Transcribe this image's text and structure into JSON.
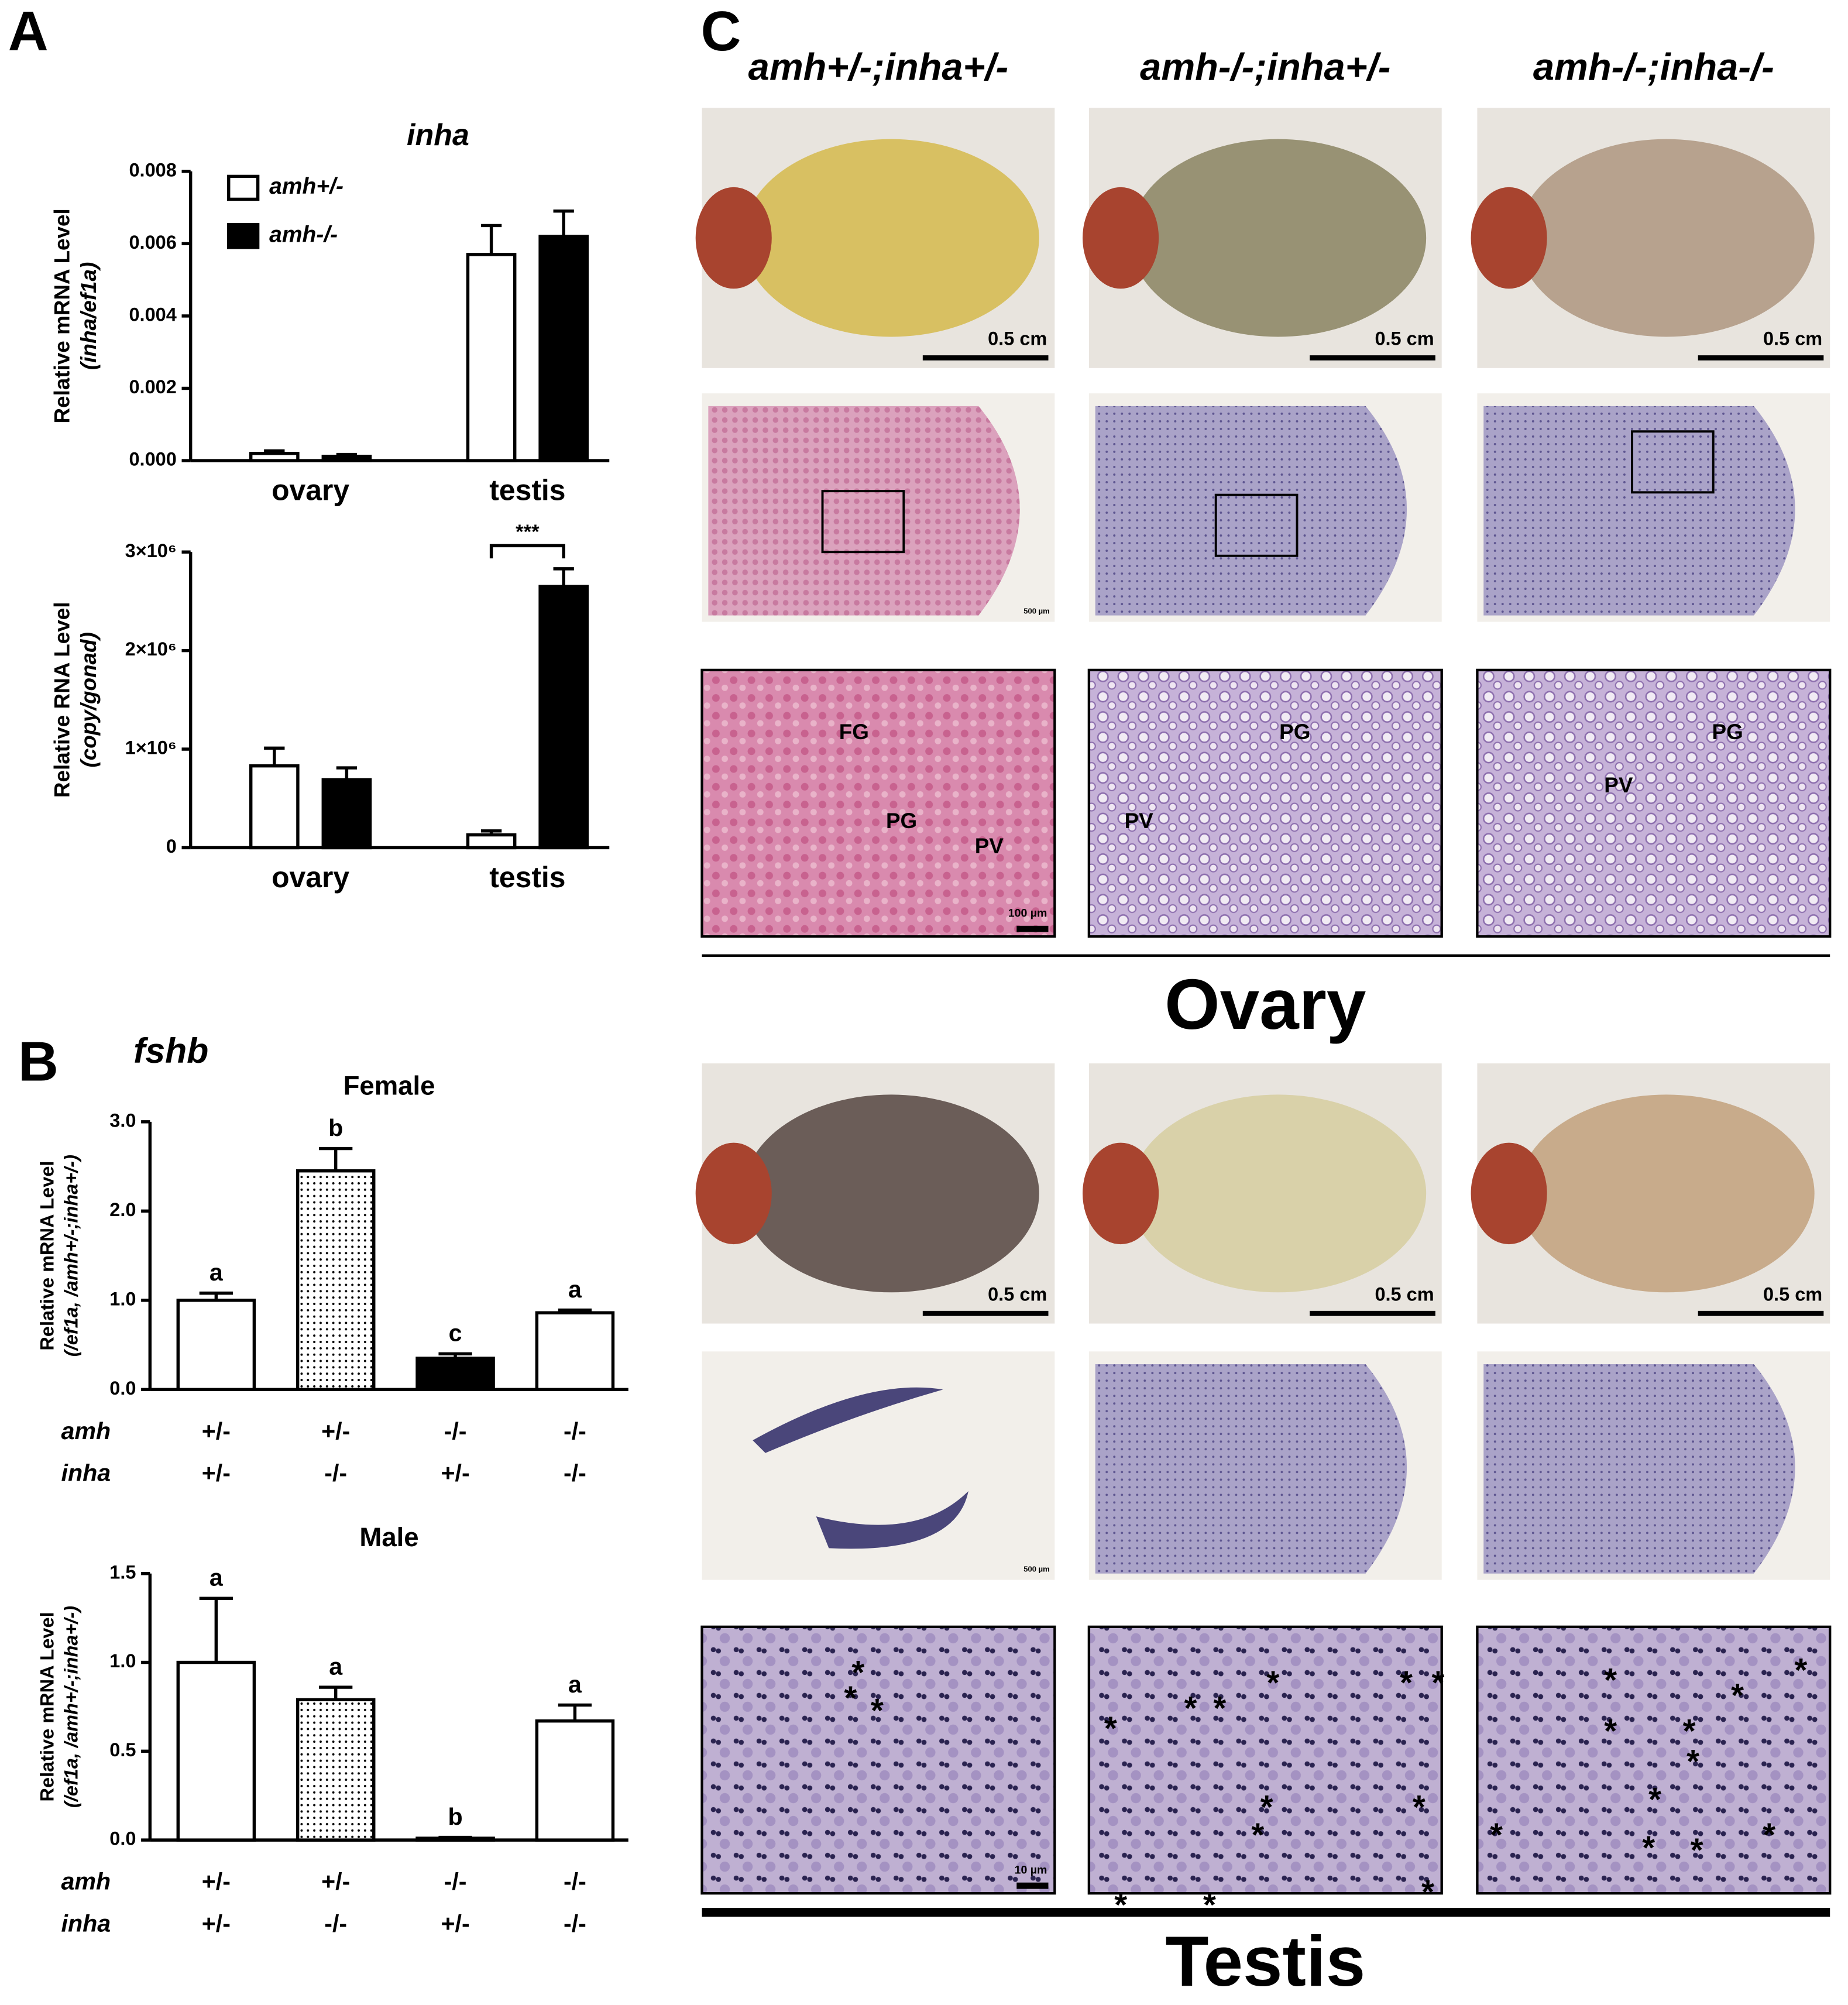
{
  "figure": {
    "panel_labels": [
      "A",
      "B",
      "C"
    ],
    "fshb_title": "fshb",
    "panel_c": {
      "columns": [
        "amh+/-;inha+/-",
        "amh-/-;inha+/-",
        "amh-/-;inha-/-"
      ],
      "photo_scales": [
        "0.5 cm",
        "0.5 cm",
        "0.5 cm",
        "0.5 cm",
        "0.5 cm",
        "0.5 cm"
      ],
      "section_scales": [
        "500 µm",
        "500 µm"
      ],
      "zoom_scales": [
        "100 µm",
        "10 µm"
      ],
      "ovary_labels": [
        [
          "FG",
          "PG",
          "PV"
        ],
        [
          "PG",
          "PV"
        ],
        [
          "PG",
          "PV"
        ]
      ],
      "sections": [
        "Ovary",
        "Testis"
      ],
      "testis_asterisks": [
        [
          "*",
          "*",
          "*"
        ],
        [
          "*",
          "*",
          "*",
          "*",
          "*",
          "*",
          "*",
          "*",
          "*",
          "*",
          "*",
          "*"
        ],
        [
          "*",
          "*",
          "*",
          "*",
          "*",
          "*",
          "*",
          "*",
          "*",
          "*",
          "*"
        ]
      ]
    }
  },
  "chart_data": [
    {
      "type": "bar",
      "title": "inha",
      "ylabel": [
        "Relative mRNA Level",
        "(inha/ef1a)"
      ],
      "categories": [
        "ovary",
        "testis"
      ],
      "series": [
        {
          "name": "amh+/-",
          "color": "#ffffff",
          "values": [
            0.0002,
            0.0057
          ],
          "errors": [
            7e-05,
            0.0008
          ]
        },
        {
          "name": "amh-/-",
          "color": "#000000",
          "values": [
            0.00012,
            0.0062
          ],
          "errors": [
            5e-05,
            0.0007
          ]
        }
      ],
      "ylim": [
        0,
        0.008
      ],
      "yticks": [
        {
          "value": 0,
          "label": "0.000"
        },
        0.002,
        0.004,
        0.006,
        0.008
      ],
      "legend": "upper left"
    },
    {
      "type": "bar",
      "ylabel": [
        "Relative RNA Level",
        "(copy/gonad)"
      ],
      "categories": [
        "ovary",
        "testis"
      ],
      "series": [
        {
          "color": "#ffffff",
          "values": [
            830000,
            130000
          ],
          "errors": [
            180000,
            40000
          ]
        },
        {
          "color": "#000000",
          "values": [
            690000,
            2650000
          ],
          "errors": [
            120000,
            180000
          ]
        }
      ],
      "ylim": [
        0,
        3000000
      ],
      "yticks": [
        0,
        {
          "value": 1000000,
          "label": "1×10⁶"
        },
        {
          "value": 2000000,
          "label": "2×10⁶"
        },
        {
          "value": 3000000,
          "label": "3×10⁶"
        }
      ],
      "annotation": "***"
    },
    {
      "type": "bar",
      "title": "Female",
      "ylabel": [
        "Relative mRNA Level",
        "(/ef1a, /amh+/-;inha+/-)"
      ],
      "row_labels": [
        "amh",
        "inha"
      ],
      "genotypes": [
        [
          "+/-",
          "+/-"
        ],
        [
          "+/-",
          "-/-"
        ],
        [
          "-/-",
          "+/-"
        ],
        [
          "-/-",
          "-/-"
        ]
      ],
      "values": [
        1.0,
        2.45,
        0.35,
        0.86
      ],
      "errors": [
        0.08,
        0.25,
        0.05,
        0.03
      ],
      "significance": [
        "a",
        "b",
        "c",
        "a"
      ],
      "fills": [
        "white",
        "dots",
        "black",
        "white"
      ],
      "ylim": [
        0,
        3
      ],
      "yticks": [
        {
          "value": 0,
          "label": "0.0"
        },
        {
          "value": 1,
          "label": "1.0"
        },
        {
          "value": 2,
          "label": "2.0"
        },
        {
          "value": 3,
          "label": "3.0"
        }
      ]
    },
    {
      "type": "bar",
      "title": "Male",
      "ylabel": [
        "Relative mRNA Level",
        "(/ef1a, /amh+/-;inha+/-)"
      ],
      "row_labels": [
        "amh",
        "inha"
      ],
      "genotypes": [
        [
          "+/-",
          "+/-"
        ],
        [
          "+/-",
          "-/-"
        ],
        [
          "-/-",
          "+/-"
        ],
        [
          "-/-",
          "-/-"
        ]
      ],
      "values": [
        1.0,
        0.79,
        0.01,
        0.67
      ],
      "errors": [
        0.36,
        0.07,
        0.005,
        0.09
      ],
      "significance": [
        "a",
        "a",
        "b",
        "a"
      ],
      "fills": [
        "white",
        "dots",
        "black",
        "white"
      ],
      "ylim": [
        0,
        1.5
      ],
      "yticks": [
        {
          "value": 0,
          "label": "0.0"
        },
        0.5,
        {
          "value": 1,
          "label": "1.0"
        },
        1.5
      ]
    }
  ]
}
